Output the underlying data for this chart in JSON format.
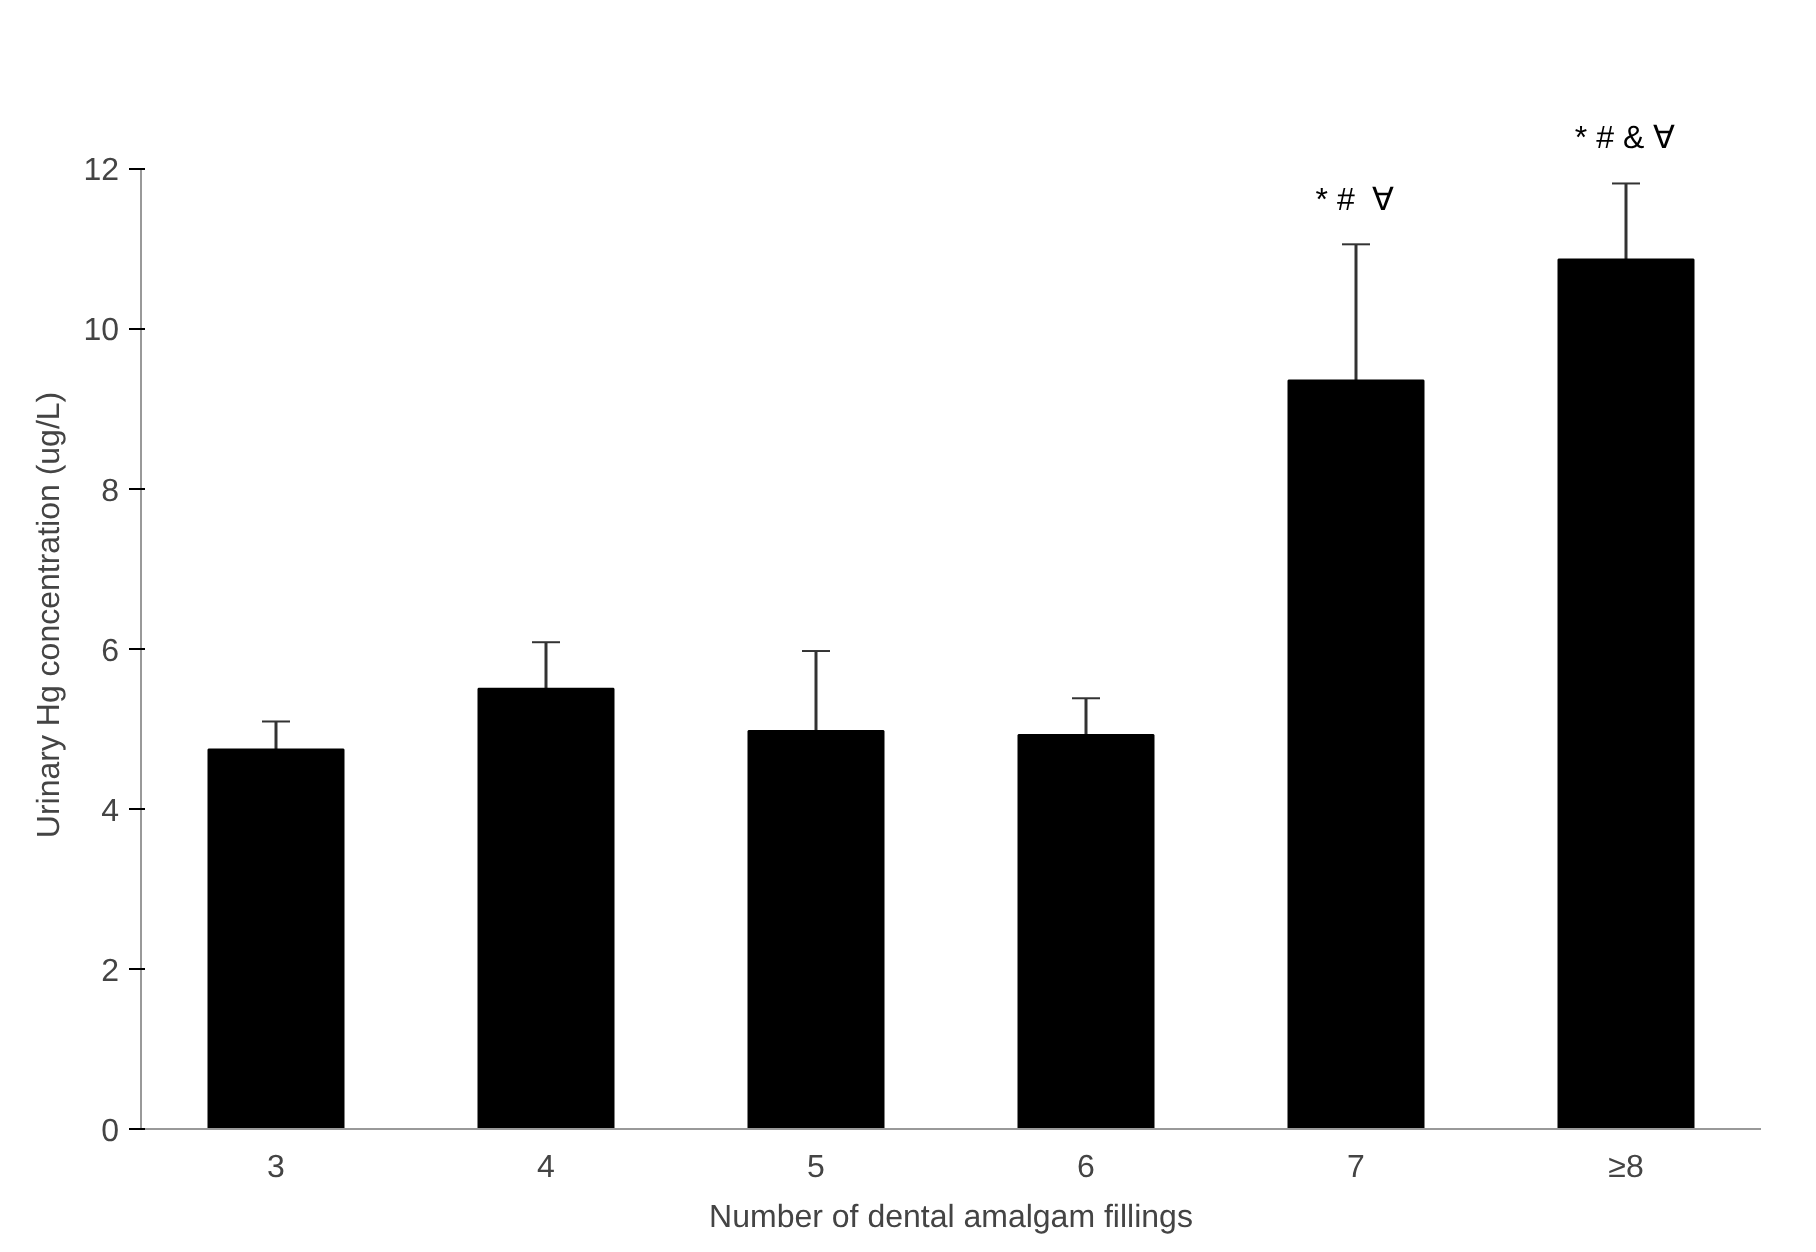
{
  "chart_data": {
    "type": "bar",
    "xlabel": "Number of dental amalgam fillings",
    "ylabel": "Urinary Hg concentration (ug/L)",
    "categories": [
      "3",
      "4",
      "5",
      "6",
      "7",
      "≥8"
    ],
    "values": [
      4.74,
      5.5,
      4.97,
      4.92,
      9.35,
      10.86
    ],
    "errors": [
      0.35,
      0.58,
      1.0,
      0.46,
      1.7,
      0.95
    ],
    "color": "#000000",
    "ylim": [
      0,
      12
    ],
    "yticks": [
      0,
      2,
      4,
      6,
      8,
      10,
      12
    ],
    "grid": false,
    "annotations": [
      {
        "text": "* #  ∀",
        "x": "7",
        "y": 11.05
      },
      {
        "text": "* # & ∀",
        "x": "≥8",
        "y": 11.81
      }
    ]
  }
}
